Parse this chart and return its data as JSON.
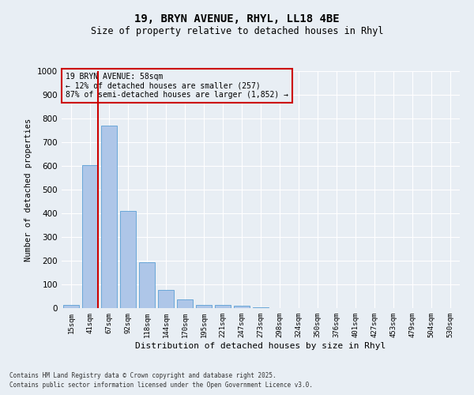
{
  "title1": "19, BRYN AVENUE, RHYL, LL18 4BE",
  "title2": "Size of property relative to detached houses in Rhyl",
  "xlabel": "Distribution of detached houses by size in Rhyl",
  "ylabel": "Number of detached properties",
  "categories": [
    "15sqm",
    "41sqm",
    "67sqm",
    "92sqm",
    "118sqm",
    "144sqm",
    "170sqm",
    "195sqm",
    "221sqm",
    "247sqm",
    "273sqm",
    "298sqm",
    "324sqm",
    "350sqm",
    "376sqm",
    "401sqm",
    "427sqm",
    "453sqm",
    "479sqm",
    "504sqm",
    "530sqm"
  ],
  "values": [
    12,
    605,
    770,
    410,
    193,
    78,
    37,
    15,
    15,
    10,
    5,
    0,
    0,
    0,
    0,
    0,
    0,
    0,
    0,
    0,
    0
  ],
  "bar_color": "#aec6e8",
  "bar_edge_color": "#5a9fd4",
  "background_color": "#e8eef4",
  "grid_color": "#ffffff",
  "annotation_box_color": "#cc0000",
  "annotation_line_color": "#cc0000",
  "ylim": [
    0,
    1000
  ],
  "yticks": [
    0,
    100,
    200,
    300,
    400,
    500,
    600,
    700,
    800,
    900,
    1000
  ],
  "red_line_bar_index": 1,
  "annotation_text": "19 BRYN AVENUE: 58sqm\n← 12% of detached houses are smaller (257)\n87% of semi-detached houses are larger (1,852) →",
  "footnote1": "Contains HM Land Registry data © Crown copyright and database right 2025.",
  "footnote2": "Contains public sector information licensed under the Open Government Licence v3.0."
}
